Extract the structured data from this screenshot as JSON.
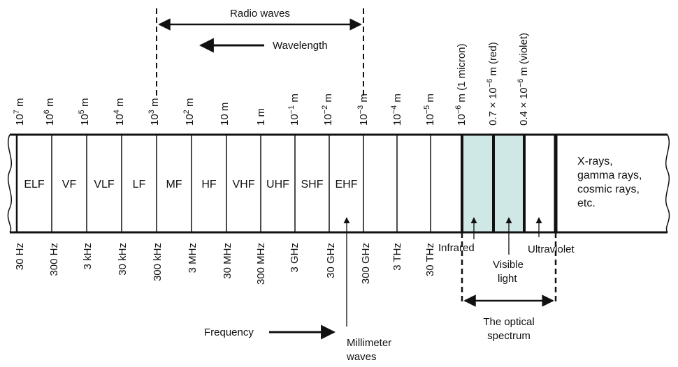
{
  "radio_waves_label": "Radio waves",
  "wavelength_label": "Wavelength",
  "frequency_label": "Frequency",
  "millimeter_waves": [
    "Millimeter",
    "waves"
  ],
  "optical_spectrum": [
    "The optical",
    "spectrum"
  ],
  "infrared_label": "Infrared",
  "visible_light": [
    "Visible",
    "light"
  ],
  "ultraviolet_label": "Ultraviolet",
  "xray_text": [
    "X-rays,",
    "gamma rays,",
    "cosmic rays,",
    "etc."
  ],
  "bands": [
    "ELF",
    "VF",
    "VLF",
    "LF",
    "MF",
    "HF",
    "VHF",
    "UHF",
    "SHF",
    "EHF"
  ],
  "wavelength_ticks": [
    {
      "base": "10",
      "exp": "7",
      "unit": " m"
    },
    {
      "base": "10",
      "exp": "6",
      "unit": " m"
    },
    {
      "base": "10",
      "exp": "5",
      "unit": " m"
    },
    {
      "base": "10",
      "exp": "4",
      "unit": " m"
    },
    {
      "base": "10",
      "exp": "3",
      "unit": " m"
    },
    {
      "base": "10",
      "exp": "2",
      "unit": " m"
    },
    {
      "base": "10 m",
      "exp": "",
      "unit": ""
    },
    {
      "base": "1 m",
      "exp": "",
      "unit": ""
    },
    {
      "base": "10",
      "exp": "−1",
      "unit": " m"
    },
    {
      "base": "10",
      "exp": "−2",
      "unit": " m"
    },
    {
      "base": "10",
      "exp": "−3",
      "unit": " m"
    },
    {
      "base": "10",
      "exp": "−4",
      "unit": " m"
    },
    {
      "base": "10",
      "exp": "−5",
      "unit": " m"
    },
    {
      "base": "10",
      "exp": "−6",
      "unit": " m (1 micron)"
    },
    {
      "base": "0.7 × 10",
      "exp": "−6",
      "unit": " m (red)"
    },
    {
      "base": "0.4 × 10",
      "exp": "−6",
      "unit": " m (violet)"
    }
  ],
  "frequency_ticks": [
    "30 Hz",
    "300 Hz",
    "3 kHz",
    "30 kHz",
    "300 kHz",
    "3 MHz",
    "30 MHz",
    "300 MHz",
    "3 GHz",
    "30 GHz",
    "300 GHz",
    "3 THz",
    "30 THz"
  ],
  "colors": {
    "line": "#111111",
    "visible_fill": "#cfe8e6"
  }
}
